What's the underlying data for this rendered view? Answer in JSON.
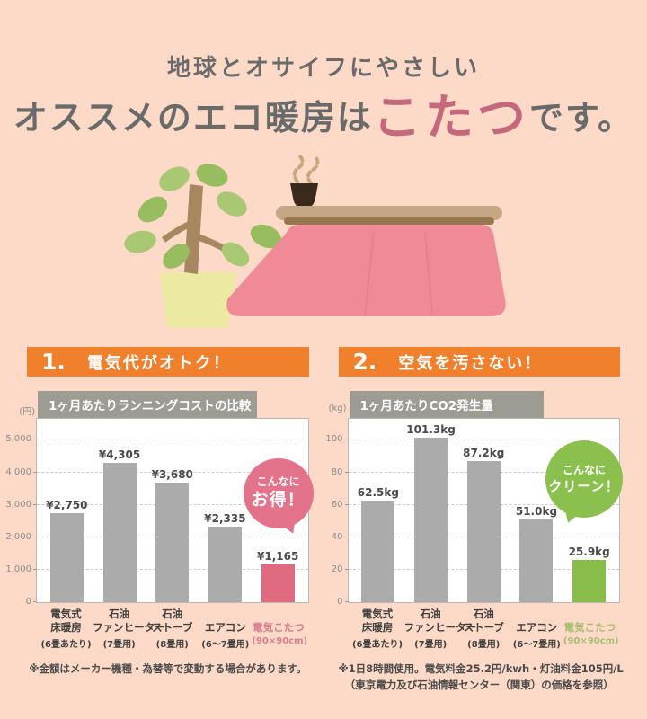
{
  "header": {
    "line1": "地球とオサイフにやさしい",
    "line2_prefix": "オススメのエコ暖房は",
    "line2_highlight": "こたつ",
    "line2_suffix": "です。"
  },
  "colors": {
    "background_peach": "#fcdac7",
    "title_gray": "#6a6a6a",
    "title_highlight_pink": "#c4687b",
    "accent_orange": "#f1802d",
    "chart_label_gray": "#9d9c92",
    "bar_gray": "#ababab",
    "bar_pink": "#e06a7f",
    "bar_green": "#87bd48",
    "bubble_pink": "#e2738a",
    "bubble_green": "#8cc04e"
  },
  "sections": [
    {
      "number": "1.",
      "heading": "電気代がオトク！",
      "bubble": {
        "line1": "こんなに",
        "line2": "お得！"
      },
      "notes": [
        "※金額はメーカー機種・為替等で変動する場合があります。"
      ]
    },
    {
      "number": "2.",
      "heading": "空気を汚さない！",
      "bubble": {
        "line1": "こんなに",
        "line2": "クリーン！"
      },
      "notes": [
        "※1日8時間使用。電気料金25.2円/kwh・灯油料金105円/L",
        "（東京電力及び石油情報センター（関東）の価格を参照）"
      ]
    }
  ],
  "chart_data": [
    {
      "type": "bar",
      "title": "1ヶ月あたりランニングコストの比較",
      "unit_label": "(円)",
      "categories": [
        {
          "line1": "電気式",
          "line2": "床暖房",
          "sub": "(6畳あたり)"
        },
        {
          "line1": "石油",
          "line2": "ファンヒーター",
          "sub": "(7畳用)"
        },
        {
          "line1": "石油",
          "line2": "ストーブ",
          "sub": "(8畳用)"
        },
        {
          "line1": "",
          "line2": "エアコン",
          "sub": "(6～7畳用)"
        },
        {
          "line1": "",
          "line2": "電気こたつ",
          "sub": "(90×90cm)"
        }
      ],
      "values": [
        2750,
        4305,
        3680,
        2335,
        1165
      ],
      "value_labels": [
        "¥2,750",
        "¥4,305",
        "¥3,680",
        "¥2,335",
        "¥1,165"
      ],
      "yticks": [
        {
          "value": 5000,
          "label": "5,000"
        },
        {
          "value": 4000,
          "label": "4,000"
        },
        {
          "value": 3000,
          "label": "3,000"
        },
        {
          "value": 2000,
          "label": "2,000"
        },
        {
          "value": 1000,
          "label": "1,000"
        },
        {
          "value": 0,
          "label": "0"
        }
      ],
      "ylim": [
        0,
        5000
      ],
      "scale_max": 5650,
      "grid": true,
      "legend": "none",
      "highlight_index": 4,
      "bar_color": "#ababab",
      "highlight_color": "#e06a7f",
      "xlabel_color": "#3e3e3e",
      "highlight_xlabel_color": "#d97d8e"
    },
    {
      "type": "bar",
      "title": "1ヶ月あたりCO2発生量",
      "unit_label": "(kg)",
      "categories": [
        {
          "line1": "電気式",
          "line2": "床暖房",
          "sub": "(6畳あたり)"
        },
        {
          "line1": "石油",
          "line2": "ファンヒーター",
          "sub": "(7畳用)"
        },
        {
          "line1": "石油",
          "line2": "ストーブ",
          "sub": "(8畳用)"
        },
        {
          "line1": "",
          "line2": "エアコン",
          "sub": "(6～7畳用)"
        },
        {
          "line1": "",
          "line2": "電気こたつ",
          "sub": "(90×90cm)"
        }
      ],
      "values": [
        62.5,
        101.3,
        87.2,
        51.0,
        25.9
      ],
      "value_labels": [
        "62.5kg",
        "101.3kg",
        "87.2kg",
        "51.0kg",
        "25.9kg"
      ],
      "yticks": [
        {
          "value": 100,
          "label": "100"
        },
        {
          "value": 80,
          "label": "80"
        },
        {
          "value": 60,
          "label": "60"
        },
        {
          "value": 40,
          "label": "40"
        },
        {
          "value": 20,
          "label": "20"
        },
        {
          "value": 0,
          "label": "0"
        }
      ],
      "ylim": [
        0,
        100
      ],
      "scale_max": 113,
      "grid": true,
      "legend": "none",
      "highlight_index": 4,
      "bar_color": "#ababab",
      "highlight_color": "#87bd48",
      "xlabel_color": "#3e3e3e",
      "highlight_xlabel_color": "#a9bc72"
    }
  ]
}
